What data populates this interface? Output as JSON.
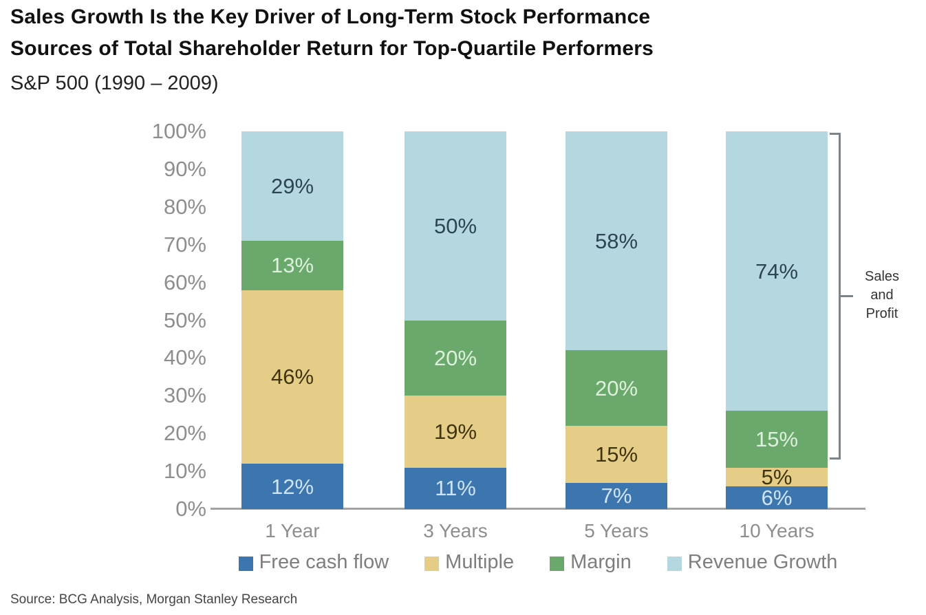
{
  "header": {
    "title_line1": "Sales Growth Is the Key Driver of Long-Term Stock Performance",
    "title_line2": "Sources of Total Shareholder Return for Top-Quartile Performers",
    "subtitle": "S&P 500 (1990 – 2009)"
  },
  "chart_data": {
    "type": "bar",
    "stacked": true,
    "unit": "%",
    "title": "Sources of Total Shareholder Return for Top-Quartile Performers",
    "categories": [
      "1 Year",
      "3 Years",
      "5 Years",
      "10 Years"
    ],
    "series": [
      {
        "name": "Free cash flow",
        "color": "#3d76ae",
        "label_color": "#cfe4f4",
        "values": [
          12,
          11,
          7,
          6
        ]
      },
      {
        "name": "Multiple",
        "color": "#e5cd87",
        "label_color": "#3e340e",
        "values": [
          46,
          19,
          15,
          5
        ]
      },
      {
        "name": "Margin",
        "color": "#6aa96b",
        "label_color": "#ddf1dd",
        "values": [
          13,
          20,
          20,
          15
        ]
      },
      {
        "name": "Revenue Growth",
        "color": "#b5d7df",
        "label_color": "#2b4557",
        "values": [
          29,
          50,
          58,
          74
        ]
      }
    ],
    "y_ticks": [
      "100%",
      "90%",
      "80%",
      "70%",
      "60%",
      "50%",
      "40%",
      "30%",
      "20%",
      "10%",
      "0%"
    ],
    "ylim": [
      0,
      100
    ],
    "grid": false,
    "legend_position": "bottom",
    "annotation": {
      "label": "Sales and Profit",
      "lines": [
        "Sales",
        "and",
        "Profit"
      ],
      "applies_to": [
        "Margin",
        "Revenue Growth"
      ]
    }
  },
  "footer": {
    "source": "Source: BCG Analysis, Morgan Stanley Research"
  }
}
